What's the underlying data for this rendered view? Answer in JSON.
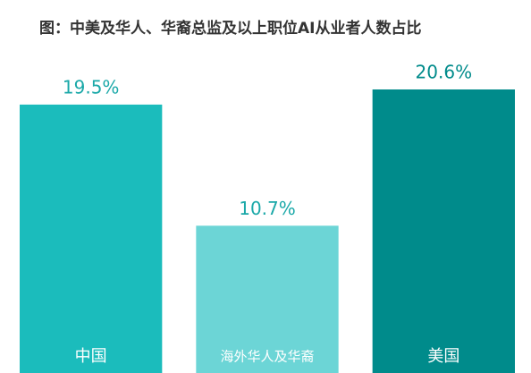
{
  "chart_data": {
    "type": "bar",
    "title": "图：中美及华人、华裔总监及以上职位AI从业者人数占比",
    "categories": [
      "中国",
      "海外华人及华裔",
      "美国"
    ],
    "values": [
      19.5,
      10.7,
      20.6
    ],
    "value_labels": [
      "19.5%",
      "10.7%",
      "20.6%"
    ],
    "colors": [
      "#1bbcbc",
      "#6cd5d6",
      "#008b8b"
    ]
  }
}
